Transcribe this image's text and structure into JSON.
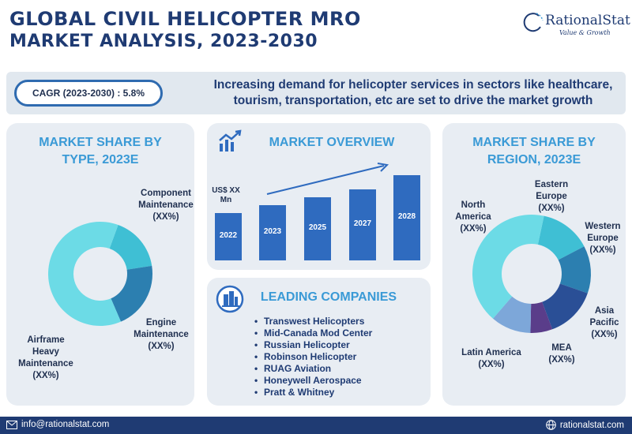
{
  "header": {
    "title_line1": "GLOBAL CIVIL HELICOPTER MRO",
    "title_line2": "MARKET ANALYSIS, 2023-2030",
    "brand_name": "RationalStat",
    "brand_tagline": "Value & Growth"
  },
  "banner": {
    "cagr": "CAGR (2023-2030) : 5.8%",
    "text": "Increasing demand for helicopter services in sectors like healthcare, tourism, transportation, etc are set to drive the market growth"
  },
  "type_panel": {
    "title": "MARKET SHARE BY TYPE, 2023E",
    "labels": {
      "component": "Component Maintenance (XX%)",
      "engine": "Engine Maintenance (XX%)",
      "airframe": "Airframe Heavy Maintenance (XX%)"
    }
  },
  "overview_panel": {
    "title": "MARKET OVERVIEW",
    "unit": "US$ XX Mn"
  },
  "companies_panel": {
    "title": "LEADING COMPANIES",
    "items": [
      "Transwest Helicopters",
      "Mid-Canada Mod Center",
      "Russian Helicopter",
      "Robinson Helicopter",
      "RUAG Aviation",
      "Honeywell Aerospace",
      "Pratt & Whitney"
    ]
  },
  "region_panel": {
    "title": "MARKET SHARE BY REGION, 2023E",
    "labels": {
      "north_america": "North America (XX%)",
      "eastern_europe": "Eastern Europe (XX%)",
      "western_europe": "Western Europe (XX%)",
      "asia_pacific": "Asia Pacific (XX%)",
      "mea": "MEA (XX%)",
      "latin_america": "Latin America (XX%)"
    }
  },
  "footer": {
    "email": "info@rationalstat.com",
    "website": "rationalstat.com"
  },
  "chart_data": [
    {
      "type": "pie",
      "categories": [
        "Component Maintenance",
        "Engine Maintenance",
        "Airframe Heavy Maintenance"
      ],
      "values": [
        17,
        21,
        62
      ],
      "colors": [
        "#3fbfd4",
        "#2c7fb0",
        "#6cdbe6"
      ]
    },
    {
      "type": "bar",
      "categories": [
        "2022",
        "2023",
        "2025",
        "2027",
        "2028"
      ],
      "values": [
        60,
        70,
        80,
        90,
        108
      ],
      "ylabel": "US$ XX Mn",
      "colors": [
        "#2f6bbf"
      ]
    },
    {
      "type": "pie",
      "categories": [
        "Eastern Europe",
        "Western Europe",
        "Asia Pacific",
        "MEA",
        "Latin America",
        "North America"
      ],
      "values": [
        14,
        13,
        14,
        6,
        11,
        42
      ],
      "colors": [
        "#3fbfd4",
        "#2c7fb0",
        "#2a4f96",
        "#5a3d8a",
        "#7da7d9",
        "#6cdbe6"
      ]
    }
  ]
}
